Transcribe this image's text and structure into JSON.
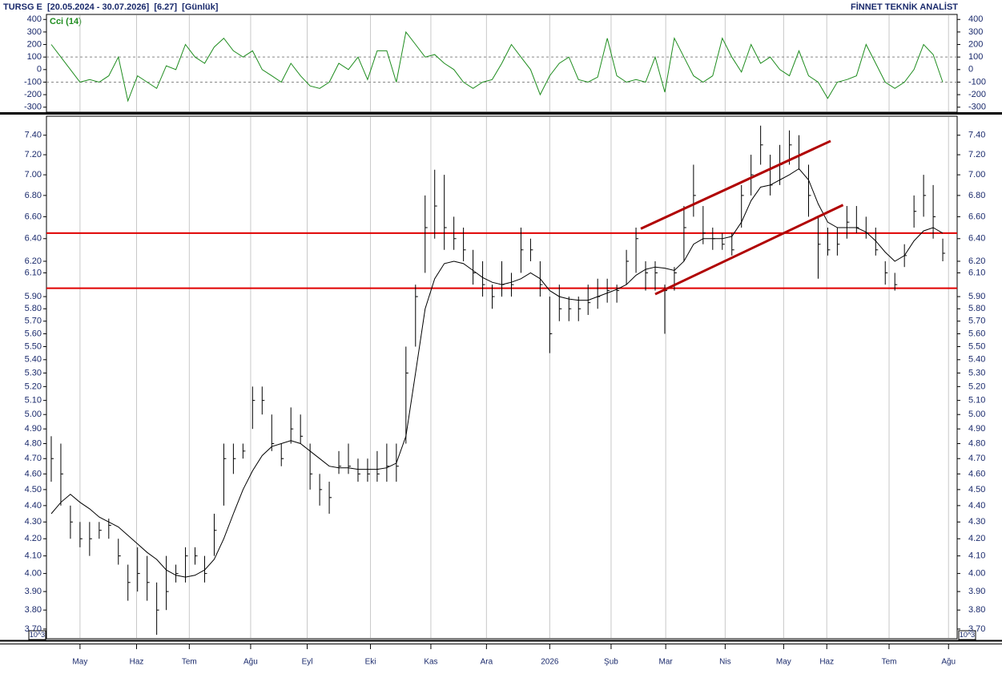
{
  "header": {
    "left": "TURSG E  [20.05.2024 - 30.07.2026]  [6.27]  [Günlük]",
    "right": "FİNNET TEKNİK ANALİST"
  },
  "chart_data": [
    {
      "type": "line",
      "title": "Cci (14)",
      "color": "#1e8c1e",
      "xlim": [
        -0.5,
        94.5
      ],
      "ylim": [
        -340,
        440
      ],
      "yticks": [
        400,
        300,
        200,
        100,
        0,
        -100,
        -200,
        -300
      ],
      "ref_lines": [
        100,
        -100
      ],
      "values": [
        200,
        100,
        0,
        -100,
        -80,
        -100,
        -50,
        100,
        -250,
        -50,
        -100,
        -150,
        30,
        0,
        200,
        100,
        50,
        180,
        250,
        150,
        100,
        150,
        0,
        -50,
        -100,
        50,
        -50,
        -130,
        -150,
        -100,
        50,
        0,
        100,
        -80,
        150,
        150,
        -100,
        300,
        200,
        100,
        120,
        50,
        0,
        -100,
        -150,
        -100,
        -80,
        50,
        200,
        100,
        0,
        -200,
        -50,
        50,
        100,
        -80,
        -100,
        -60,
        250,
        -50,
        -100,
        -80,
        -100,
        100,
        -180,
        250,
        100,
        -50,
        -100,
        -50,
        250,
        100,
        -20,
        200,
        50,
        100,
        0,
        -50,
        150,
        -50,
        -100,
        -230,
        -100,
        -80,
        -50,
        200,
        50,
        -100,
        -150,
        -100,
        0,
        200,
        120,
        -100
      ]
    },
    {
      "type": "ohlc",
      "log_scale": true,
      "color": "#000000",
      "scale_note": "10^3",
      "xlim": [
        -0.5,
        94.5
      ],
      "ylim": [
        3.65,
        7.6
      ],
      "xticks": [
        {
          "value": 3.0,
          "label": "May"
        },
        {
          "value": 8.9,
          "label": "Haz"
        },
        {
          "value": 14.4,
          "label": "Tem"
        },
        {
          "value": 20.8,
          "label": "Ağu"
        },
        {
          "value": 26.7,
          "label": "Eyl"
        },
        {
          "value": 33.3,
          "label": "Eki"
        },
        {
          "value": 39.6,
          "label": "Kas"
        },
        {
          "value": 45.4,
          "label": "Ara"
        },
        {
          "value": 52.0,
          "label": "2026"
        },
        {
          "value": 58.4,
          "label": "Şub"
        },
        {
          "value": 64.1,
          "label": "Mar"
        },
        {
          "value": 70.3,
          "label": "Nis"
        },
        {
          "value": 76.4,
          "label": "May"
        },
        {
          "value": 80.9,
          "label": "Haz"
        },
        {
          "value": 87.4,
          "label": "Tem"
        },
        {
          "value": 93.6,
          "label": "Ağu"
        }
      ],
      "yticks": [
        {
          "value": 3.7,
          "label": "3.70"
        },
        {
          "value": 3.8,
          "label": "3.80"
        },
        {
          "value": 3.9,
          "label": "3.90"
        },
        {
          "value": 4.0,
          "label": "4.00"
        },
        {
          "value": 4.1,
          "label": "4.10"
        },
        {
          "value": 4.2,
          "label": "4.20"
        },
        {
          "value": 4.3,
          "label": "4.30"
        },
        {
          "value": 4.4,
          "label": "4.40"
        },
        {
          "value": 4.5,
          "label": "4.50"
        },
        {
          "value": 4.6,
          "label": "4.60"
        },
        {
          "value": 4.7,
          "label": "4.70"
        },
        {
          "value": 4.8,
          "label": "4.80"
        },
        {
          "value": 4.9,
          "label": "4.90"
        },
        {
          "value": 5.0,
          "label": "5.00"
        },
        {
          "value": 5.1,
          "label": "5.10"
        },
        {
          "value": 5.2,
          "label": "5.20"
        },
        {
          "value": 5.3,
          "label": "5.30"
        },
        {
          "value": 5.4,
          "label": "5.40"
        },
        {
          "value": 5.5,
          "label": "5.50"
        },
        {
          "value": 5.6,
          "label": "5.60"
        },
        {
          "value": 5.7,
          "label": "5.70"
        },
        {
          "value": 5.8,
          "label": "5.80"
        },
        {
          "value": 5.9,
          "label": "5.90"
        },
        {
          "value": 6.1,
          "label": "6.10"
        },
        {
          "value": 6.2,
          "label": "6.20"
        },
        {
          "value": 6.4,
          "label": "6.40"
        },
        {
          "value": 6.6,
          "label": "6.60"
        },
        {
          "value": 6.8,
          "label": "6.80"
        },
        {
          "value": 7.0,
          "label": "7.00"
        },
        {
          "value": 7.2,
          "label": "7.20"
        },
        {
          "value": 7.4,
          "label": "7.40"
        }
      ],
      "high": [
        4.85,
        4.8,
        4.4,
        4.3,
        4.3,
        4.3,
        4.32,
        4.2,
        4.05,
        4.15,
        4.1,
        3.95,
        4.1,
        4.05,
        4.15,
        4.15,
        4.1,
        4.35,
        4.8,
        4.8,
        4.8,
        5.2,
        5.2,
        5.0,
        4.8,
        5.05,
        5.0,
        4.8,
        4.6,
        4.55,
        4.75,
        4.8,
        4.7,
        4.7,
        4.75,
        4.8,
        4.8,
        5.5,
        6.0,
        6.8,
        7.05,
        7.0,
        6.6,
        6.5,
        6.3,
        6.2,
        6.0,
        6.2,
        6.1,
        6.5,
        6.4,
        6.2,
        5.9,
        6.0,
        5.9,
        5.9,
        6.0,
        6.05,
        6.05,
        6.0,
        6.3,
        6.5,
        6.2,
        6.2,
        6.0,
        6.15,
        6.7,
        7.1,
        6.7,
        6.5,
        6.45,
        6.45,
        6.9,
        7.2,
        7.5,
        7.2,
        7.3,
        7.45,
        7.4,
        7.1,
        6.6,
        6.5,
        6.5,
        6.7,
        6.7,
        6.6,
        6.5,
        6.2,
        6.1,
        6.35,
        6.8,
        7.0,
        6.9,
        6.4
      ],
      "low": [
        4.55,
        4.4,
        4.2,
        4.15,
        4.1,
        4.2,
        4.2,
        4.05,
        3.85,
        3.9,
        3.85,
        3.67,
        3.8,
        3.95,
        3.95,
        4.05,
        3.95,
        4.1,
        4.4,
        4.6,
        4.7,
        4.9,
        5.0,
        4.75,
        4.65,
        4.8,
        4.8,
        4.5,
        4.4,
        4.35,
        4.6,
        4.6,
        4.55,
        4.55,
        4.55,
        4.55,
        4.55,
        4.8,
        5.5,
        6.1,
        6.4,
        6.3,
        6.3,
        6.2,
        6.0,
        5.9,
        5.8,
        5.9,
        5.9,
        6.1,
        6.2,
        5.9,
        5.45,
        5.7,
        5.7,
        5.7,
        5.75,
        5.8,
        5.85,
        5.85,
        6.0,
        6.1,
        5.95,
        5.95,
        5.6,
        5.95,
        6.2,
        6.6,
        6.35,
        6.3,
        6.3,
        6.25,
        6.5,
        6.8,
        7.1,
        6.8,
        6.9,
        7.1,
        7.05,
        6.6,
        6.05,
        6.25,
        6.25,
        6.4,
        6.45,
        6.4,
        6.25,
        6.0,
        5.95,
        6.15,
        6.5,
        6.6,
        6.4,
        6.2
      ],
      "close": [
        4.7,
        4.6,
        4.3,
        4.2,
        4.2,
        4.25,
        4.28,
        4.1,
        3.95,
        4.0,
        3.95,
        3.8,
        3.9,
        4.0,
        4.1,
        4.1,
        4.0,
        4.25,
        4.7,
        4.7,
        4.75,
        5.1,
        5.1,
        4.8,
        4.7,
        4.9,
        4.85,
        4.6,
        4.5,
        4.45,
        4.65,
        4.65,
        4.6,
        4.6,
        4.6,
        4.65,
        4.65,
        5.3,
        5.9,
        6.5,
        6.7,
        6.5,
        6.4,
        6.3,
        6.1,
        6.0,
        5.9,
        6.0,
        6.0,
        6.3,
        6.3,
        6.0,
        5.6,
        5.8,
        5.8,
        5.8,
        5.85,
        5.9,
        5.95,
        5.95,
        6.2,
        6.4,
        6.1,
        6.1,
        5.95,
        6.1,
        6.5,
        6.8,
        6.45,
        6.4,
        6.35,
        6.3,
        6.8,
        7.0,
        7.3,
        6.9,
        7.1,
        7.3,
        7.2,
        6.8,
        6.35,
        6.3,
        6.35,
        6.55,
        6.5,
        6.45,
        6.3,
        6.1,
        6.0,
        6.25,
        6.65,
        6.8,
        6.6,
        6.27
      ],
      "ma": {
        "color": "#000000",
        "values": [
          4.35,
          4.42,
          4.47,
          4.42,
          4.38,
          4.33,
          4.3,
          4.27,
          4.22,
          4.17,
          4.12,
          4.08,
          4.02,
          3.99,
          3.98,
          3.99,
          4.02,
          4.08,
          4.2,
          4.35,
          4.5,
          4.62,
          4.72,
          4.78,
          4.8,
          4.82,
          4.8,
          4.75,
          4.7,
          4.65,
          4.64,
          4.64,
          4.63,
          4.63,
          4.63,
          4.64,
          4.67,
          4.85,
          5.3,
          5.8,
          6.05,
          6.18,
          6.2,
          6.18,
          6.12,
          6.06,
          6.02,
          6.0,
          6.02,
          6.05,
          6.1,
          6.05,
          5.95,
          5.9,
          5.88,
          5.87,
          5.87,
          5.9,
          5.93,
          5.96,
          6.0,
          6.08,
          6.13,
          6.15,
          6.14,
          6.12,
          6.2,
          6.35,
          6.4,
          6.4,
          6.4,
          6.42,
          6.55,
          6.75,
          6.88,
          6.9,
          6.95,
          7.0,
          7.06,
          6.95,
          6.72,
          6.55,
          6.5,
          6.5,
          6.5,
          6.46,
          6.38,
          6.28,
          6.2,
          6.25,
          6.38,
          6.47,
          6.5,
          6.45
        ]
      },
      "hlines": [
        {
          "value": 6.45,
          "color": "#e00000"
        },
        {
          "value": 5.97,
          "color": "#e00000"
        }
      ],
      "trendlines": [
        {
          "from": [
            61.5,
            6.49
          ],
          "to": [
            81.3,
            7.34
          ],
          "color": "#b00000"
        },
        {
          "from": [
            63.0,
            5.92
          ],
          "to": [
            82.6,
            6.71
          ],
          "color": "#b00000"
        }
      ]
    }
  ]
}
